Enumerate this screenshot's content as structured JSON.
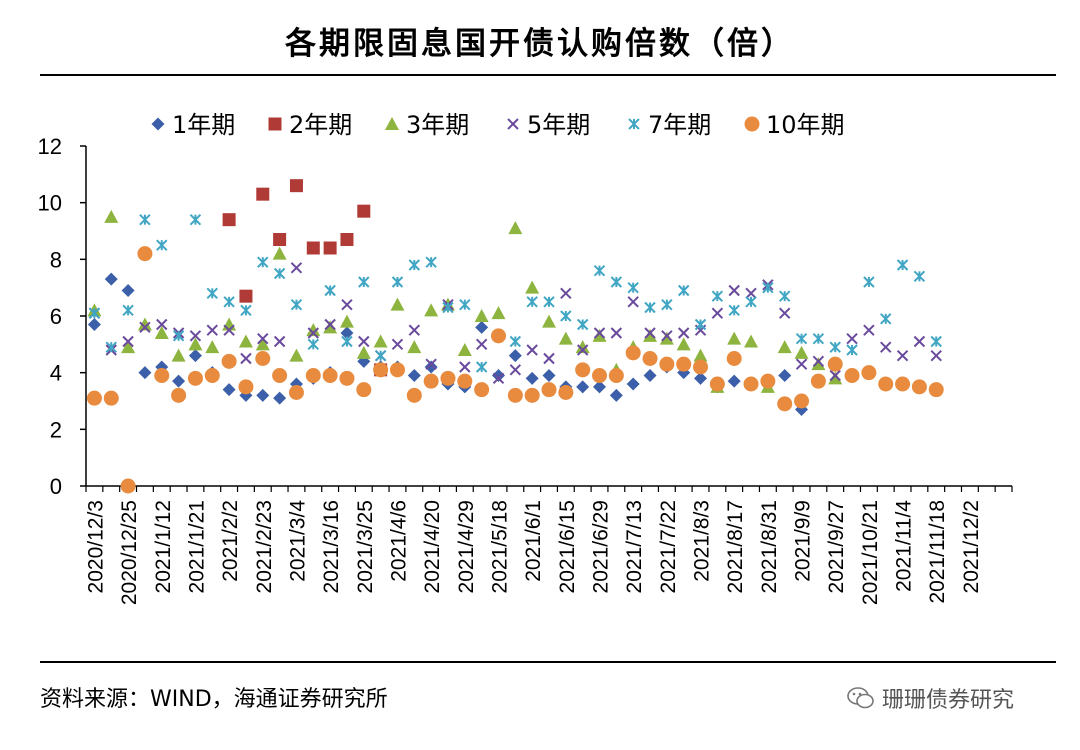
{
  "header": {
    "title": "各期限固息国开债认购倍数（倍）"
  },
  "footer": {
    "source": "资料来源：WIND，海通证券研究所",
    "watermark": "珊珊债券研究"
  },
  "chart_data": {
    "type": "scatter",
    "title": "各期限固息国开债认购倍数（倍）",
    "xlabel": "",
    "ylabel": "",
    "ylim": [
      0,
      12
    ],
    "yticks": [
      0,
      2,
      4,
      6,
      8,
      10,
      12
    ],
    "grid": false,
    "legend_position": "top",
    "x_tick_labels": [
      "2020/12/3",
      "2020/12/25",
      "2021/1/12",
      "2021/1/21",
      "2021/2/2",
      "2021/2/23",
      "2021/3/4",
      "2021/3/16",
      "2021/3/25",
      "2021/4/6",
      "2021/4/20",
      "2021/4/29",
      "2021/5/18",
      "2021/6/1",
      "2021/6/15",
      "2021/6/29",
      "2021/7/13",
      "2021/7/22",
      "2021/8/3",
      "2021/8/17",
      "2021/8/31",
      "2021/9/9",
      "2021/9/27",
      "2021/10/21",
      "2021/11/4",
      "2021/11/18",
      "2021/12/2"
    ],
    "x_ticks_per_label": 2,
    "x_count": 55,
    "series": [
      {
        "name": "1年期",
        "marker": "diamond",
        "color": "#3B5FA9",
        "points": [
          [
            0,
            5.7
          ],
          [
            1,
            7.3
          ],
          [
            2,
            6.9
          ],
          [
            3,
            4.0
          ],
          [
            4,
            4.2
          ],
          [
            5,
            3.7
          ],
          [
            6,
            4.6
          ],
          [
            7,
            4.0
          ],
          [
            8,
            3.4
          ],
          [
            9,
            3.2
          ],
          [
            10,
            3.2
          ],
          [
            11,
            3.1
          ],
          [
            12,
            3.6
          ],
          [
            13,
            3.8
          ],
          [
            14,
            4.0
          ],
          [
            15,
            5.4
          ],
          [
            16,
            4.4
          ],
          [
            17,
            4.2
          ],
          [
            18,
            4.2
          ],
          [
            19,
            3.9
          ],
          [
            20,
            4.2
          ],
          [
            21,
            3.6
          ],
          [
            22,
            3.5
          ],
          [
            23,
            5.6
          ],
          [
            24,
            3.9
          ],
          [
            25,
            4.6
          ],
          [
            26,
            3.8
          ],
          [
            27,
            3.9
          ],
          [
            28,
            3.5
          ],
          [
            29,
            3.5
          ],
          [
            30,
            3.5
          ],
          [
            31,
            3.2
          ],
          [
            32,
            3.6
          ],
          [
            33,
            3.9
          ],
          [
            34,
            4.2
          ],
          [
            35,
            4.0
          ],
          [
            36,
            3.8
          ],
          [
            37,
            3.5
          ],
          [
            38,
            3.7
          ],
          [
            39,
            3.6
          ],
          [
            40,
            3.6
          ],
          [
            41,
            3.9
          ],
          [
            42,
            2.7
          ]
        ]
      },
      {
        "name": "2年期",
        "marker": "square",
        "color": "#B03A36",
        "points": [
          [
            8,
            9.4
          ],
          [
            9,
            6.7
          ],
          [
            10,
            10.3
          ],
          [
            11,
            8.7
          ],
          [
            12,
            10.6
          ],
          [
            13,
            8.4
          ],
          [
            14,
            8.4
          ],
          [
            15,
            8.7
          ],
          [
            16,
            9.7
          ],
          [
            17,
            4.1
          ]
        ]
      },
      {
        "name": "3年期",
        "marker": "triangle",
        "color": "#8DB43E",
        "points": [
          [
            0,
            6.2
          ],
          [
            1,
            9.5
          ],
          [
            2,
            4.9
          ],
          [
            3,
            5.7
          ],
          [
            4,
            5.4
          ],
          [
            5,
            4.6
          ],
          [
            6,
            5.0
          ],
          [
            7,
            4.9
          ],
          [
            8,
            5.7
          ],
          [
            9,
            5.1
          ],
          [
            10,
            5.0
          ],
          [
            11,
            8.2
          ],
          [
            12,
            4.6
          ],
          [
            13,
            5.5
          ],
          [
            14,
            5.6
          ],
          [
            15,
            5.8
          ],
          [
            16,
            4.7
          ],
          [
            17,
            5.1
          ],
          [
            18,
            6.4
          ],
          [
            19,
            4.9
          ],
          [
            20,
            6.2
          ],
          [
            21,
            6.4
          ],
          [
            22,
            4.8
          ],
          [
            23,
            6.0
          ],
          [
            24,
            6.1
          ],
          [
            25,
            9.1
          ],
          [
            26,
            7.0
          ],
          [
            27,
            5.8
          ],
          [
            28,
            5.2
          ],
          [
            29,
            4.9
          ],
          [
            30,
            5.3
          ],
          [
            31,
            4.1
          ],
          [
            32,
            4.9
          ],
          [
            33,
            5.3
          ],
          [
            34,
            5.2
          ],
          [
            35,
            5.0
          ],
          [
            36,
            4.6
          ],
          [
            37,
            3.5
          ],
          [
            38,
            5.2
          ],
          [
            39,
            5.1
          ],
          [
            40,
            3.5
          ],
          [
            41,
            4.9
          ],
          [
            42,
            4.7
          ],
          [
            43,
            4.3
          ],
          [
            44,
            3.8
          ]
        ]
      },
      {
        "name": "5年期",
        "marker": "x",
        "color": "#6A4A9C",
        "points": [
          [
            0,
            6.1
          ],
          [
            1,
            4.8
          ],
          [
            2,
            5.1
          ],
          [
            3,
            5.6
          ],
          [
            4,
            5.7
          ],
          [
            5,
            5.4
          ],
          [
            6,
            5.3
          ],
          [
            7,
            5.5
          ],
          [
            8,
            5.5
          ],
          [
            9,
            4.5
          ],
          [
            10,
            5.2
          ],
          [
            11,
            5.1
          ],
          [
            12,
            7.7
          ],
          [
            13,
            5.4
          ],
          [
            14,
            5.7
          ],
          [
            15,
            6.4
          ],
          [
            16,
            5.1
          ],
          [
            17,
            4.6
          ],
          [
            18,
            5.0
          ],
          [
            19,
            5.5
          ],
          [
            20,
            4.3
          ],
          [
            21,
            6.4
          ],
          [
            22,
            4.2
          ],
          [
            23,
            5.0
          ],
          [
            24,
            3.8
          ],
          [
            25,
            4.1
          ],
          [
            26,
            4.8
          ],
          [
            27,
            4.5
          ],
          [
            28,
            6.8
          ],
          [
            29,
            4.8
          ],
          [
            30,
            5.4
          ],
          [
            31,
            5.4
          ],
          [
            32,
            6.5
          ],
          [
            33,
            5.4
          ],
          [
            34,
            5.3
          ],
          [
            35,
            5.4
          ],
          [
            36,
            5.5
          ],
          [
            37,
            6.1
          ],
          [
            38,
            6.9
          ],
          [
            39,
            6.8
          ],
          [
            40,
            7.1
          ],
          [
            41,
            6.1
          ],
          [
            42,
            4.3
          ],
          [
            43,
            4.4
          ],
          [
            44,
            3.9
          ],
          [
            45,
            5.2
          ],
          [
            46,
            5.5
          ],
          [
            47,
            4.9
          ],
          [
            48,
            4.6
          ],
          [
            49,
            5.1
          ],
          [
            50,
            4.6
          ]
        ]
      },
      {
        "name": "7年期",
        "marker": "star",
        "color": "#41A6C4",
        "points": [
          [
            0,
            6.1
          ],
          [
            1,
            4.9
          ],
          [
            2,
            6.2
          ],
          [
            3,
            9.4
          ],
          [
            4,
            8.5
          ],
          [
            5,
            5.3
          ],
          [
            6,
            9.4
          ],
          [
            7,
            6.8
          ],
          [
            8,
            6.5
          ],
          [
            9,
            6.2
          ],
          [
            10,
            7.9
          ],
          [
            11,
            7.5
          ],
          [
            12,
            6.4
          ],
          [
            13,
            5.0
          ],
          [
            14,
            6.9
          ],
          [
            15,
            5.1
          ],
          [
            16,
            7.2
          ],
          [
            17,
            4.6
          ],
          [
            18,
            7.2
          ],
          [
            19,
            7.8
          ],
          [
            20,
            7.9
          ],
          [
            21,
            6.3
          ],
          [
            22,
            6.4
          ],
          [
            23,
            4.2
          ],
          [
            24,
            5.3
          ],
          [
            25,
            5.1
          ],
          [
            26,
            6.5
          ],
          [
            27,
            6.5
          ],
          [
            28,
            6.0
          ],
          [
            29,
            5.7
          ],
          [
            30,
            7.6
          ],
          [
            31,
            7.2
          ],
          [
            32,
            7.0
          ],
          [
            33,
            6.3
          ],
          [
            34,
            6.4
          ],
          [
            35,
            6.9
          ],
          [
            36,
            5.7
          ],
          [
            37,
            6.7
          ],
          [
            38,
            6.2
          ],
          [
            39,
            6.5
          ],
          [
            40,
            7.0
          ],
          [
            41,
            6.7
          ],
          [
            42,
            5.2
          ],
          [
            43,
            5.2
          ],
          [
            44,
            4.9
          ],
          [
            45,
            4.8
          ],
          [
            46,
            7.2
          ],
          [
            47,
            5.9
          ],
          [
            48,
            7.8
          ],
          [
            49,
            7.4
          ],
          [
            50,
            5.1
          ]
        ]
      },
      {
        "name": "10年期",
        "marker": "circle",
        "color": "#E88B3E",
        "points": [
          [
            0,
            3.1
          ],
          [
            1,
            3.1
          ],
          [
            2,
            0.0
          ],
          [
            3,
            8.2
          ],
          [
            4,
            3.9
          ],
          [
            5,
            3.2
          ],
          [
            6,
            3.8
          ],
          [
            7,
            3.9
          ],
          [
            8,
            4.4
          ],
          [
            9,
            3.5
          ],
          [
            10,
            4.5
          ],
          [
            11,
            3.9
          ],
          [
            12,
            3.3
          ],
          [
            13,
            3.9
          ],
          [
            14,
            3.9
          ],
          [
            15,
            3.8
          ],
          [
            16,
            3.4
          ],
          [
            17,
            4.1
          ],
          [
            18,
            4.1
          ],
          [
            19,
            3.2
          ],
          [
            20,
            3.7
          ],
          [
            21,
            3.8
          ],
          [
            22,
            3.7
          ],
          [
            23,
            3.4
          ],
          [
            24,
            5.3
          ],
          [
            25,
            3.2
          ],
          [
            26,
            3.2
          ],
          [
            27,
            3.4
          ],
          [
            28,
            3.3
          ],
          [
            29,
            4.1
          ],
          [
            30,
            3.9
          ],
          [
            31,
            3.9
          ],
          [
            32,
            4.7
          ],
          [
            33,
            4.5
          ],
          [
            34,
            4.3
          ],
          [
            35,
            4.3
          ],
          [
            36,
            4.2
          ],
          [
            37,
            3.6
          ],
          [
            38,
            4.5
          ],
          [
            39,
            3.6
          ],
          [
            40,
            3.7
          ],
          [
            41,
            2.9
          ],
          [
            42,
            3.0
          ],
          [
            43,
            3.7
          ],
          [
            44,
            4.3
          ],
          [
            45,
            3.9
          ],
          [
            46,
            4.0
          ],
          [
            47,
            3.6
          ],
          [
            48,
            3.6
          ],
          [
            49,
            3.5
          ],
          [
            50,
            3.4
          ]
        ]
      }
    ]
  }
}
